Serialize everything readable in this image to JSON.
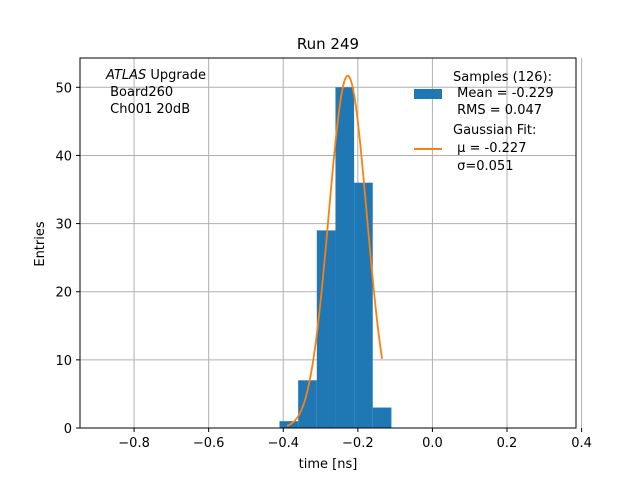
{
  "chart_data": {
    "type": "bar",
    "title": "Run 249",
    "xlabel": "time [ns]",
    "ylabel": "Entries",
    "xlim": [
      -0.945,
      0.385
    ],
    "ylim": [
      0,
      54.3
    ],
    "grid": true,
    "x_ticks": [
      -0.8,
      -0.6,
      -0.4,
      -0.2,
      0.0,
      0.2,
      0.4
    ],
    "x_tick_labels": [
      "−0.8",
      "−0.6",
      "−0.4",
      "−0.2",
      "0.0",
      "0.2",
      "0.4"
    ],
    "y_ticks": [
      0,
      10,
      20,
      30,
      40,
      50
    ],
    "y_tick_labels": [
      "0",
      "10",
      "20",
      "30",
      "40",
      "50"
    ],
    "series": [
      {
        "name": "Samples (126)",
        "kind": "histogram",
        "color": "#1f77b4",
        "bin_edges": [
          -0.41,
          -0.36,
          -0.31,
          -0.26,
          -0.21,
          -0.16,
          -0.11
        ],
        "values": [
          1,
          7,
          29,
          50,
          36,
          3
        ]
      },
      {
        "name": "Gaussian Fit",
        "kind": "line",
        "color": "#ff7f0e",
        "mu": -0.227,
        "sigma": 0.051,
        "amplitude": 51.7,
        "x_range": [
          -0.39,
          -0.135
        ]
      }
    ],
    "legend": {
      "position": "top-right",
      "entries": [
        {
          "lines": [
            "Samples (126):",
            " Mean = -0.229",
            " RMS = 0.047"
          ],
          "color": "#1f77b4",
          "marker": "patch"
        },
        {
          "lines": [
            "Gaussian Fit:",
            " μ = -0.227",
            " σ=0.051"
          ],
          "color": "#ff7f0e",
          "marker": "line"
        }
      ]
    },
    "annotation": {
      "position": "top-left",
      "italic": "ATLAS",
      "rest": " Upgrade",
      "lines": [
        " Board260",
        " Ch001 20dB"
      ]
    }
  }
}
